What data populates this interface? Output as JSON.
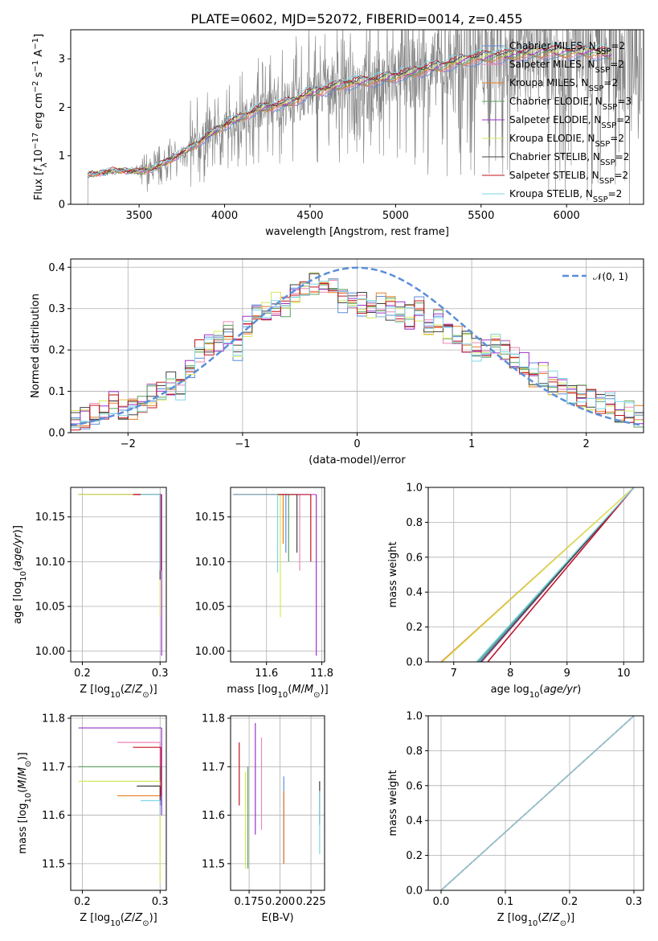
{
  "figure_title": "PLATE=0602, MJD=52072, FIBERID=0014, z=0.455",
  "colors": {
    "Chabrier MILES": "#5b8fd9",
    "Salpeter MILES": "#ec86b6",
    "Kroupa MILES": "#e67e22",
    "Chabrier ELODIE": "#5aa05a",
    "Salpeter ELODIE": "#9b30c8",
    "Kroupa ELODIE": "#d7e85c",
    "Chabrier STELIB": "#404040",
    "Salpeter STELIB": "#c0141e",
    "Kroupa STELIB": "#7fd6e8",
    "data": "#808080",
    "gaussian": "#5b8fd9"
  },
  "chart_data": [
    {
      "id": "spectrum",
      "type": "line",
      "title": "PLATE=0602, MJD=52072, FIBERID=0014, z=0.455",
      "xlabel": "wavelength [Angstrom, rest frame]",
      "ylabel": "Flux [f_λ 10^-17 erg cm^-2 s^-1 A^-1]",
      "xlim": [
        3100,
        6450
      ],
      "ylim": [
        0,
        3.6
      ],
      "xticks": [
        "3500",
        "4000",
        "4500",
        "5000",
        "5500",
        "6000"
      ],
      "yticks": [
        "0",
        "1",
        "2",
        "3"
      ],
      "grid": false,
      "legend_position": "right",
      "legend": [
        {
          "label": "Chabrier MILES, N",
          "sub": "SSP",
          "suffix": "=2"
        },
        {
          "label": "Salpeter MILES, N",
          "sub": "SSP",
          "suffix": "=2"
        },
        {
          "label": "Kroupa MILES, N",
          "sub": "SSP",
          "suffix": "=2"
        },
        {
          "label": "Chabrier ELODIE, N",
          "sub": "SSP",
          "suffix": "=3"
        },
        {
          "label": "Salpeter ELODIE, N",
          "sub": "SSP",
          "suffix": "=2"
        },
        {
          "label": "Kroupa ELODIE, N",
          "sub": "SSP",
          "suffix": "=2"
        },
        {
          "label": "Chabrier STELIB, N",
          "sub": "SSP",
          "suffix": "=2"
        },
        {
          "label": "Salpeter STELIB, N",
          "sub": "SSP",
          "suffix": "=2"
        },
        {
          "label": "Kroupa STELIB, N",
          "sub": "SSP",
          "suffix": "=2"
        }
      ],
      "continuum": {
        "x": [
          3200,
          3300,
          3400,
          3500,
          3600,
          3700,
          3800,
          3900,
          4000,
          4100,
          4200,
          4300,
          4400,
          4500,
          4600,
          4700,
          4800,
          4900,
          5000,
          5100,
          5200,
          5300,
          5400,
          5500,
          5600,
          5700,
          5800,
          5900,
          6000,
          6100,
          6200,
          6250
        ],
        "y": [
          0.6,
          0.66,
          0.7,
          0.66,
          0.75,
          0.95,
          1.15,
          1.4,
          1.62,
          1.78,
          1.95,
          2.02,
          2.1,
          2.28,
          2.36,
          2.46,
          2.5,
          2.55,
          2.62,
          2.7,
          2.78,
          2.85,
          2.95,
          3.0,
          3.02,
          3.06,
          3.1,
          3.12,
          3.1,
          3.12,
          3.1,
          3.05
        ]
      }
    },
    {
      "id": "residuals",
      "type": "line",
      "xlabel": "(data-model)/error",
      "ylabel": "Normed distribution",
      "xlim": [
        -2.5,
        2.5
      ],
      "ylim": [
        0,
        0.42
      ],
      "xticks": [
        "−2",
        "−1",
        "0",
        "1",
        "2"
      ],
      "yticks": [
        "0.0",
        "0.1",
        "0.2",
        "0.3",
        "0.4"
      ],
      "grid": true,
      "legend_position": "top-right",
      "legend_label": "𝒩(0, 1)",
      "hist_base": [
        0.03,
        0.035,
        0.045,
        0.06,
        0.07,
        0.055,
        0.06,
        0.07,
        0.09,
        0.1,
        0.12,
        0.1,
        0.15,
        0.2,
        0.21,
        0.22,
        0.24,
        0.2,
        0.26,
        0.28,
        0.3,
        0.31,
        0.3,
        0.33,
        0.35,
        0.36,
        0.34,
        0.35,
        0.32,
        0.33,
        0.31,
        0.3,
        0.31,
        0.3,
        0.29,
        0.28,
        0.3,
        0.26,
        0.27,
        0.24,
        0.24,
        0.22,
        0.2,
        0.21,
        0.22,
        0.2,
        0.18,
        0.17,
        0.14,
        0.14,
        0.12,
        0.11,
        0.1,
        0.09,
        0.08,
        0.07,
        0.07,
        0.05,
        0.05,
        0.04
      ]
    },
    {
      "id": "z-age",
      "type": "line",
      "xlabel": "Z [log10(Z/Z⊙)]",
      "ylabel": "age [log10(age/yr)]",
      "xlim": [
        0.185,
        0.308
      ],
      "ylim": [
        9.988,
        10.183
      ],
      "xticks": [
        "0.2",
        "0.3"
      ],
      "yticks": [
        "10.00",
        "10.05",
        "10.10",
        "10.15"
      ],
      "grid": true
    },
    {
      "id": "mass-age",
      "type": "line",
      "xlabel": "mass [log10(M/M⊙)]",
      "ylabel": "",
      "xlim": [
        11.47,
        11.81
      ],
      "ylim": [
        9.988,
        10.183
      ],
      "xticks": [
        "11.6",
        "11.8"
      ],
      "yticks": [
        "10.00",
        "10.05",
        "10.10",
        "10.15"
      ],
      "grid": true
    },
    {
      "id": "cum-age",
      "type": "line",
      "xlabel": "age log10(age/yr)",
      "ylabel": "mass weight",
      "xlim": [
        6.55,
        10.35
      ],
      "ylim": [
        0,
        1
      ],
      "xticks": [
        "7",
        "8",
        "9",
        "10"
      ],
      "yticks": [
        "0.0",
        "0.2",
        "0.4",
        "0.6",
        "0.8",
        "1.0"
      ],
      "grid": true,
      "starts": {
        "Chabrier MILES": 7.45,
        "Salpeter MILES": 7.5,
        "Kroupa MILES": 6.78,
        "Chabrier ELODIE": 7.42,
        "Salpeter ELODIE": 7.6,
        "Kroupa ELODIE": 6.8,
        "Chabrier STELIB": 7.48,
        "Salpeter STELIB": 7.6,
        "Kroupa STELIB": 7.4
      },
      "end": 10.18
    },
    {
      "id": "z-mass",
      "type": "line",
      "xlabel": "Z [log10(Z/Z⊙)]",
      "ylabel": "mass [log10(M/M⊙)]",
      "xlim": [
        0.185,
        0.308
      ],
      "ylim": [
        11.445,
        11.805
      ],
      "xticks": [
        "0.2",
        "0.3"
      ],
      "yticks": [
        "11.5",
        "11.6",
        "11.7",
        "11.8"
      ],
      "grid": true
    },
    {
      "id": "ebv-mass",
      "type": "line",
      "xlabel": "E(B-V)",
      "ylabel": "",
      "xlim": [
        0.16,
        0.236
      ],
      "ylim": [
        11.445,
        11.805
      ],
      "xticks": [
        "0.175",
        "0.200",
        "0.225"
      ],
      "yticks": [
        "11.5",
        "11.6",
        "11.7",
        "11.8"
      ],
      "grid": true
    },
    {
      "id": "cum-z",
      "type": "line",
      "xlabel": "Z [log10(Z/Z⊙)]",
      "ylabel": "mass weight",
      "xlim": [
        -0.02,
        0.315
      ],
      "ylim": [
        0,
        1
      ],
      "xticks": [
        "0.0",
        "0.1",
        "0.2",
        "0.3"
      ],
      "yticks": [
        "0.0",
        "0.2",
        "0.4",
        "0.6",
        "0.8",
        "1.0"
      ],
      "grid": true
    }
  ],
  "order": [
    "Chabrier MILES",
    "Salpeter MILES",
    "Kroupa MILES",
    "Chabrier ELODIE",
    "Salpeter ELODIE",
    "Kroupa ELODIE",
    "Chabrier STELIB",
    "Salpeter STELIB",
    "Kroupa STELIB"
  ],
  "fits": {
    "Chabrier MILES": {
      "z1": 0.3,
      "z2": 0.301,
      "age1": 10.175,
      "age2": 10.09,
      "m1": 11.66,
      "m2": 11.62,
      "ebv": 0.203,
      "m_lo": 11.5,
      "m_hi": 11.68
    },
    "Salpeter MILES": {
      "z1": 0.245,
      "z2": 0.3,
      "age1": 10.175,
      "age2": 10.12,
      "m1": 11.75,
      "m2": 11.7,
      "ebv": 0.185,
      "m_lo": 11.57,
      "m_hi": 11.76
    },
    "Kroupa MILES": {
      "z1": 0.245,
      "z2": 0.3,
      "age1": 10.175,
      "age2": 10.1,
      "m1": 11.64,
      "m2": 11.6,
      "ebv": 0.203,
      "m_lo": 11.5,
      "m_hi": 11.65
    },
    "Chabrier ELODIE": {
      "z1": 0.195,
      "z2": 0.3,
      "age1": 10.175,
      "age2": 10.08,
      "m1": 11.7,
      "m2": 11.65,
      "ebv": 0.174,
      "m_lo": 11.49,
      "m_hi": 11.7
    },
    "Salpeter ELODIE": {
      "z1": 0.195,
      "z2": 0.302,
      "age1": 10.175,
      "age2": 9.995,
      "m1": 11.78,
      "m2": 11.6,
      "ebv": 0.18,
      "m_lo": 11.56,
      "m_hi": 11.79
    },
    "Kroupa ELODIE": {
      "z1": 0.195,
      "z2": 0.3,
      "age1": 10.175,
      "age2": 10.04,
      "m1": 11.67,
      "m2": 11.46,
      "ebv": 0.172,
      "m_lo": 11.49,
      "m_hi": 11.69
    },
    "Chabrier STELIB": {
      "z1": 0.27,
      "z2": 0.3,
      "age1": 10.175,
      "age2": 10.08,
      "m1": 11.66,
      "m2": 11.62,
      "ebv": 0.232,
      "m_lo": 11.58,
      "m_hi": 11.67
    },
    "Salpeter STELIB": {
      "z1": 0.265,
      "z2": 0.301,
      "age1": 10.175,
      "age2": 10.09,
      "m1": 11.74,
      "m2": 11.64,
      "ebv": 0.167,
      "m_lo": 11.62,
      "m_hi": 11.75
    },
    "Kroupa STELIB": {
      "z1": 0.275,
      "z2": 0.3,
      "age1": 10.175,
      "age2": 10.09,
      "m1": 11.63,
      "m2": 11.6,
      "ebv": 0.232,
      "m_lo": 11.52,
      "m_hi": 11.65
    }
  },
  "fit_masses": {
    "Chabrier MILES": 11.67,
    "Salpeter MILES": 11.72,
    "Kroupa MILES": 11.66,
    "Chabrier ELODIE": 11.68,
    "Salpeter ELODIE": 11.78,
    "Kroupa ELODIE": 11.65,
    "Chabrier STELIB": 11.71,
    "Salpeter STELIB": 11.76,
    "Kroupa STELIB": 11.64
  },
  "fit_mass_lo": {
    "Chabrier MILES": 10.11,
    "Salpeter MILES": 10.09,
    "Kroupa MILES": 10.12,
    "Chabrier ELODIE": 10.1,
    "Salpeter ELODIE": 9.995,
    "Kroupa ELODIE": 10.038,
    "Chabrier STELIB": 10.11,
    "Salpeter STELIB": 10.1,
    "Kroupa STELIB": 10.088
  }
}
